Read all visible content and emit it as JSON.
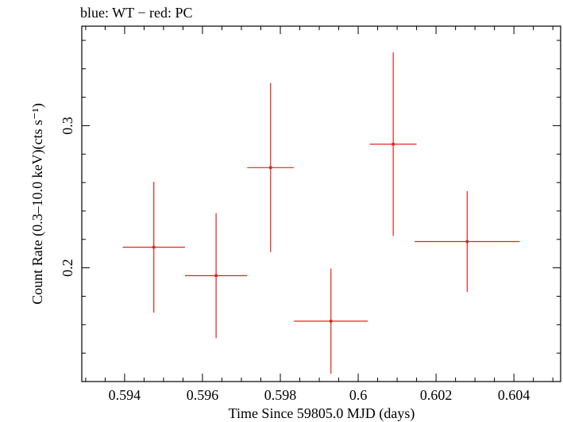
{
  "chart_data": {
    "type": "scatter",
    "title": "blue: WT − red: PC",
    "xlabel": "Time Since 59805.0 MJD (days)",
    "ylabel": "Count Rate (0.3–10.0 keV)(cts s⁻¹)",
    "xlim": [
      0.5929,
      0.6052
    ],
    "ylim": [
      0.12,
      0.37
    ],
    "x_ticks": [
      {
        "value": 0.594,
        "label": "0.594"
      },
      {
        "value": 0.596,
        "label": "0.596"
      },
      {
        "value": 0.598,
        "label": "0.598"
      },
      {
        "value": 0.6,
        "label": "0.6"
      },
      {
        "value": 0.602,
        "label": "0.602"
      },
      {
        "value": 0.604,
        "label": "0.604"
      }
    ],
    "y_ticks": [
      {
        "value": 0.2,
        "label": "0.2"
      },
      {
        "value": 0.3,
        "label": "0.3"
      }
    ],
    "grid": false,
    "series": [
      {
        "color": "#e8201c",
        "points": [
          {
            "x": 0.59475,
            "y": 0.2145,
            "xerr_low": 0.0008,
            "xerr_high": 0.0008,
            "yerr_low": 0.046,
            "yerr_high": 0.046
          },
          {
            "x": 0.59635,
            "y": 0.1945,
            "xerr_low": 0.0008,
            "xerr_high": 0.0008,
            "yerr_low": 0.044,
            "yerr_high": 0.044
          },
          {
            "x": 0.59775,
            "y": 0.2705,
            "xerr_low": 0.0006,
            "xerr_high": 0.0006,
            "yerr_low": 0.0595,
            "yerr_high": 0.0595
          },
          {
            "x": 0.5993,
            "y": 0.1625,
            "xerr_low": 0.00095,
            "xerr_high": 0.00095,
            "yerr_low": 0.037,
            "yerr_high": 0.037
          },
          {
            "x": 0.6009,
            "y": 0.287,
            "xerr_low": 0.0006,
            "xerr_high": 0.0006,
            "yerr_low": 0.0645,
            "yerr_high": 0.0645
          },
          {
            "x": 0.6028,
            "y": 0.2185,
            "xerr_low": 0.00135,
            "xerr_high": 0.00135,
            "yerr_low": 0.0355,
            "yerr_high": 0.0355
          }
        ]
      }
    ]
  }
}
